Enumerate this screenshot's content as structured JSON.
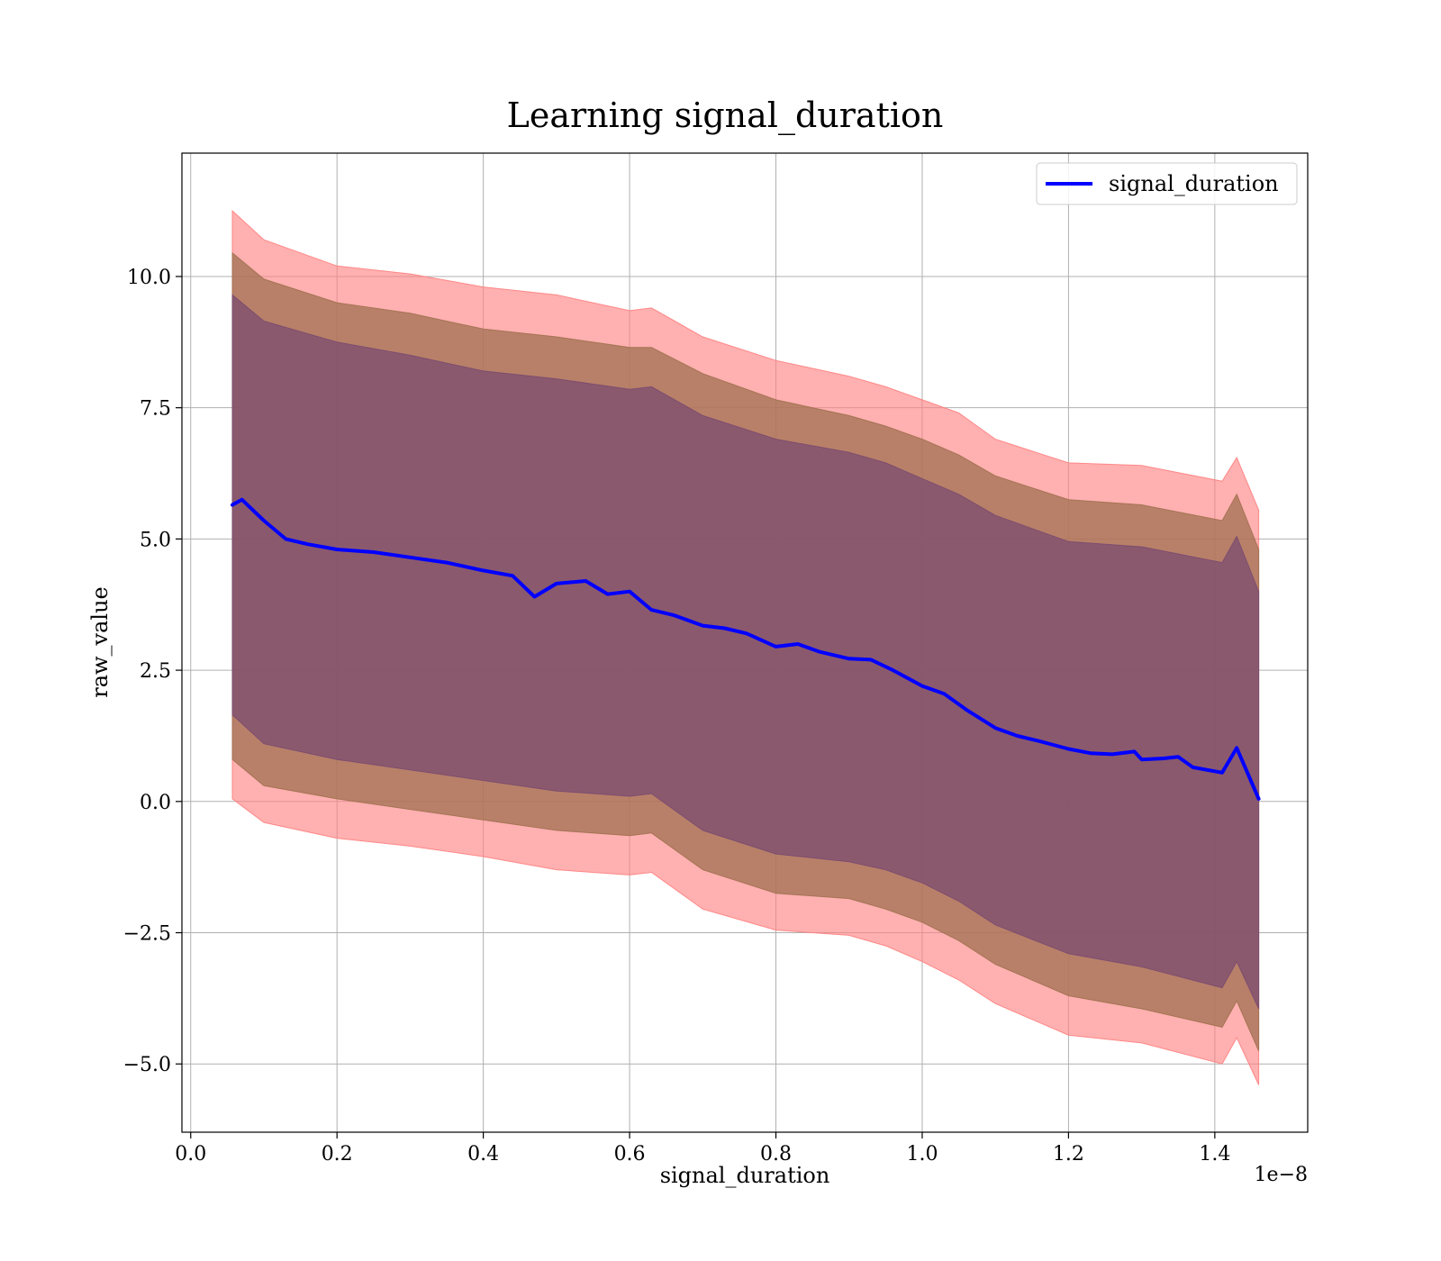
{
  "chart_data": {
    "type": "line",
    "title": "Learning signal_duration",
    "xlabel": "signal_duration",
    "ylabel": "raw_value",
    "x_offset_text": "1e−8",
    "xlim": [
      -0.012,
      1.527
    ],
    "ylim": [
      -6.3,
      12.35
    ],
    "xticks": [
      0.0,
      0.2,
      0.4,
      0.6,
      0.8,
      1.0,
      1.2,
      1.4
    ],
    "xtick_labels": [
      "0.0",
      "0.2",
      "0.4",
      "0.6",
      "0.8",
      "1.0",
      "1.2",
      "1.4"
    ],
    "yticks": [
      -5.0,
      -2.5,
      0.0,
      2.5,
      5.0,
      7.5,
      10.0
    ],
    "ytick_labels": [
      "−5.0",
      "−2.5",
      "0.0",
      "2.5",
      "5.0",
      "7.5",
      "10.0"
    ],
    "grid": true,
    "legend_position": "top-right",
    "colors": {
      "line": "#0000ff",
      "band_outer": "#ff8080",
      "band_middle": "#a07050",
      "band_inner": "#7a4a70"
    },
    "series": [
      {
        "name": "signal_duration",
        "x": [
          0.057,
          0.07,
          0.1,
          0.13,
          0.16,
          0.2,
          0.25,
          0.3,
          0.35,
          0.4,
          0.44,
          0.47,
          0.5,
          0.54,
          0.57,
          0.6,
          0.63,
          0.66,
          0.7,
          0.73,
          0.76,
          0.8,
          0.83,
          0.86,
          0.9,
          0.93,
          0.96,
          1.0,
          1.03,
          1.06,
          1.1,
          1.13,
          1.16,
          1.2,
          1.23,
          1.26,
          1.29,
          1.3,
          1.33,
          1.35,
          1.37,
          1.41,
          1.43,
          1.46
        ],
        "y": [
          5.65,
          5.75,
          5.35,
          5.0,
          4.9,
          4.8,
          4.75,
          4.65,
          4.55,
          4.4,
          4.3,
          3.9,
          4.15,
          4.2,
          3.95,
          4.0,
          3.65,
          3.55,
          3.35,
          3.3,
          3.2,
          2.95,
          3.0,
          2.85,
          2.72,
          2.7,
          2.5,
          2.2,
          2.05,
          1.75,
          1.4,
          1.25,
          1.15,
          1.0,
          0.92,
          0.9,
          0.95,
          0.8,
          0.82,
          0.85,
          0.65,
          0.55,
          1.02,
          0.05
        ]
      }
    ],
    "bands": [
      {
        "level": "outer",
        "x": [
          0.057,
          0.1,
          0.2,
          0.3,
          0.4,
          0.5,
          0.6,
          0.63,
          0.7,
          0.8,
          0.9,
          0.95,
          1.0,
          1.05,
          1.1,
          1.2,
          1.3,
          1.41,
          1.43,
          1.46
        ],
        "upper": [
          11.25,
          10.7,
          10.2,
          10.05,
          9.8,
          9.65,
          9.35,
          9.4,
          8.85,
          8.4,
          8.1,
          7.9,
          7.65,
          7.4,
          6.9,
          6.45,
          6.4,
          6.1,
          6.55,
          5.55
        ],
        "lower": [
          0.05,
          -0.4,
          -0.7,
          -0.85,
          -1.05,
          -1.3,
          -1.4,
          -1.35,
          -2.05,
          -2.45,
          -2.55,
          -2.75,
          -3.05,
          -3.4,
          -3.85,
          -4.45,
          -4.6,
          -5.0,
          -4.5,
          -5.4
        ]
      },
      {
        "level": "middle",
        "x": [
          0.057,
          0.1,
          0.2,
          0.3,
          0.4,
          0.5,
          0.6,
          0.63,
          0.7,
          0.8,
          0.9,
          0.95,
          1.0,
          1.05,
          1.1,
          1.2,
          1.3,
          1.41,
          1.43,
          1.46
        ],
        "upper": [
          10.45,
          9.95,
          9.5,
          9.3,
          9.0,
          8.85,
          8.65,
          8.65,
          8.15,
          7.65,
          7.35,
          7.15,
          6.9,
          6.6,
          6.2,
          5.75,
          5.65,
          5.35,
          5.85,
          4.8
        ],
        "lower": [
          0.8,
          0.3,
          0.05,
          -0.15,
          -0.35,
          -0.55,
          -0.65,
          -0.6,
          -1.3,
          -1.75,
          -1.85,
          -2.05,
          -2.3,
          -2.65,
          -3.1,
          -3.7,
          -3.95,
          -4.3,
          -3.8,
          -4.75
        ]
      },
      {
        "level": "inner",
        "x": [
          0.057,
          0.1,
          0.2,
          0.3,
          0.4,
          0.5,
          0.6,
          0.63,
          0.7,
          0.8,
          0.9,
          0.95,
          1.0,
          1.05,
          1.1,
          1.2,
          1.3,
          1.41,
          1.43,
          1.46
        ],
        "upper": [
          9.65,
          9.15,
          8.75,
          8.5,
          8.2,
          8.05,
          7.85,
          7.9,
          7.35,
          6.9,
          6.65,
          6.45,
          6.15,
          5.85,
          5.45,
          4.95,
          4.85,
          4.55,
          5.05,
          4.0
        ],
        "lower": [
          1.65,
          1.1,
          0.8,
          0.6,
          0.4,
          0.2,
          0.1,
          0.15,
          -0.55,
          -1.0,
          -1.15,
          -1.3,
          -1.55,
          -1.9,
          -2.35,
          -2.9,
          -3.15,
          -3.55,
          -3.05,
          -3.95
        ]
      }
    ]
  }
}
